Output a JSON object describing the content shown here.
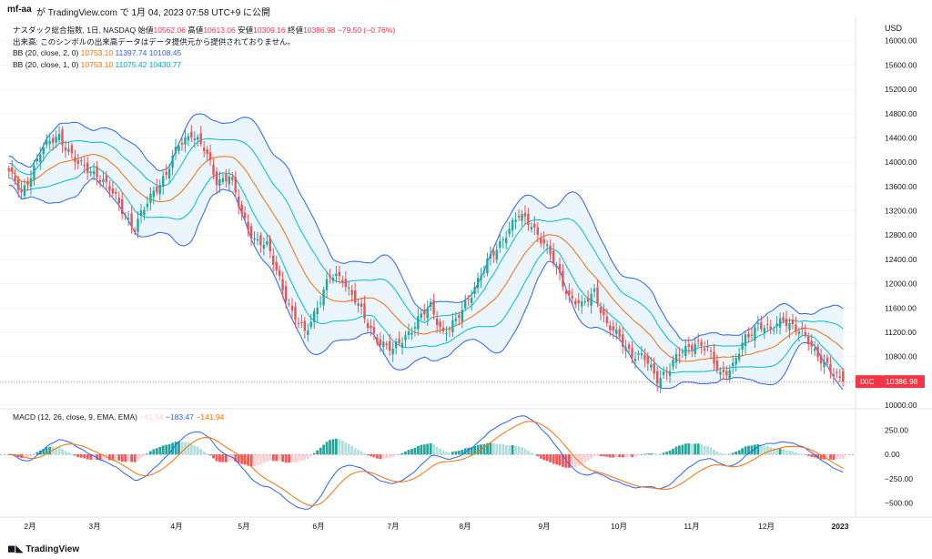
{
  "header": {
    "author": "mf-aa",
    "published_text": "が TradingView.com で 1月 04, 2023 07:58 UTC+9 に公開"
  },
  "legend": {
    "symbol_line": "ナスダック総合指数, 1日, NASDAQ",
    "open_label": "始値",
    "open": "10562.06",
    "high_label": "高値",
    "high": "10613.06",
    "low_label": "安値",
    "low": "10309.16",
    "close_label": "終値",
    "close": "10386.98",
    "change": "−79.50 (−0.76%)",
    "volume_note": "出来高: このシンボルの出来高データはデータ提供元から提供されておりません。",
    "bb2_label": "BB (20, close, 2, 0)",
    "bb2_mid": "10753.10",
    "bb2_up": "11397.74",
    "bb2_low": "10108.45",
    "bb1_label": "BB (20, close, 1, 0)",
    "bb1_mid": "10753.10",
    "bb1_up": "11075.42",
    "bb1_low": "10430.77",
    "macd_label": "MACD (12, 26, close, 9, EMA, EMA)",
    "macd_hist": "−41.54",
    "macd_line": "−183.47",
    "macd_signal": "−141.94"
  },
  "price_axis": {
    "currency": "USD",
    "ticks": [
      "16000.00",
      "15600.00",
      "15200.00",
      "14800.00",
      "14400.00",
      "14000.00",
      "13600.00",
      "13200.00",
      "12800.00",
      "12400.00",
      "12000.00",
      "11600.00",
      "11200.00",
      "10800.00",
      "10000.00"
    ],
    "last_symbol": "IXIC",
    "last_value": "10386.98"
  },
  "macd_axis": {
    "ticks": [
      "250.00",
      "0.00",
      "−250.00",
      "−500.00"
    ]
  },
  "time_axis": {
    "labels": [
      "2月",
      "3月",
      "4月",
      "5月",
      "6月",
      "7月",
      "8月",
      "9月",
      "10月",
      "11月",
      "12月",
      "2023"
    ]
  },
  "footer": {
    "brand": "TradingView"
  },
  "colors": {
    "up": "#26a69a",
    "down": "#ef5350",
    "bb_outer": "#2962ff",
    "bb_inner": "#00bcd4",
    "bb_mid": "#ff6d00",
    "bb_fill": "#e3f2fd",
    "macd_line": "#2962ff",
    "signal_line": "#ff6d00"
  },
  "chart_data": {
    "type": "candlestick",
    "title": "ナスダック総合指数, 1日, NASDAQ",
    "ylim": [
      10000,
      16400
    ],
    "macd_ylim": [
      -600,
      350
    ],
    "x": [
      "2月",
      "3月",
      "4月",
      "5月",
      "6月",
      "7月",
      "8月",
      "9月",
      "10月",
      "11月",
      "12月",
      "2023"
    ],
    "close_anchors": [
      [
        0,
        13860
      ],
      [
        4,
        13450
      ],
      [
        10,
        14180
      ],
      [
        16,
        14440
      ],
      [
        22,
        13950
      ],
      [
        28,
        13820
      ],
      [
        34,
        13400
      ],
      [
        40,
        12900
      ],
      [
        46,
        13540
      ],
      [
        50,
        13800
      ],
      [
        54,
        14280
      ],
      [
        58,
        14500
      ],
      [
        62,
        14200
      ],
      [
        66,
        13700
      ],
      [
        70,
        13780
      ],
      [
        74,
        13120
      ],
      [
        78,
        12750
      ],
      [
        82,
        12600
      ],
      [
        86,
        12100
      ],
      [
        90,
        11500
      ],
      [
        94,
        11180
      ],
      [
        98,
        11650
      ],
      [
        102,
        12100
      ],
      [
        106,
        12100
      ],
      [
        110,
        11740
      ],
      [
        114,
        11300
      ],
      [
        118,
        11050
      ],
      [
        122,
        10880
      ],
      [
        126,
        11150
      ],
      [
        130,
        11400
      ],
      [
        134,
        11620
      ],
      [
        138,
        11200
      ],
      [
        142,
        11350
      ],
      [
        146,
        11780
      ],
      [
        150,
        12150
      ],
      [
        154,
        12500
      ],
      [
        158,
        12850
      ],
      [
        162,
        13100
      ],
      [
        166,
        13000
      ],
      [
        170,
        12650
      ],
      [
        174,
        12250
      ],
      [
        178,
        11800
      ],
      [
        182,
        11600
      ],
      [
        186,
        11900
      ],
      [
        190,
        11300
      ],
      [
        194,
        11100
      ],
      [
        198,
        10850
      ],
      [
        202,
        10750
      ],
      [
        206,
        10450
      ],
      [
        210,
        10600
      ],
      [
        214,
        10900
      ],
      [
        218,
        11050
      ],
      [
        222,
        10880
      ],
      [
        226,
        10540
      ],
      [
        230,
        10620
      ],
      [
        234,
        11100
      ],
      [
        238,
        11350
      ],
      [
        242,
        11200
      ],
      [
        246,
        11450
      ],
      [
        250,
        11250
      ],
      [
        254,
        11050
      ],
      [
        258,
        10780
      ],
      [
        262,
        10470
      ],
      [
        265,
        10387
      ]
    ],
    "last_candle": {
      "open": 10562.06,
      "high": 10613.06,
      "low": 10309.16,
      "close": 10386.98
    },
    "bollinger_2sd_last": {
      "middle": 10753.1,
      "upper": 11397.74,
      "lower": 10108.45
    },
    "bollinger_1sd_last": {
      "middle": 10753.1,
      "upper": 11075.42,
      "lower": 10430.77
    },
    "macd_last": {
      "histogram": -41.54,
      "macd": -183.47,
      "signal": -141.94
    }
  }
}
